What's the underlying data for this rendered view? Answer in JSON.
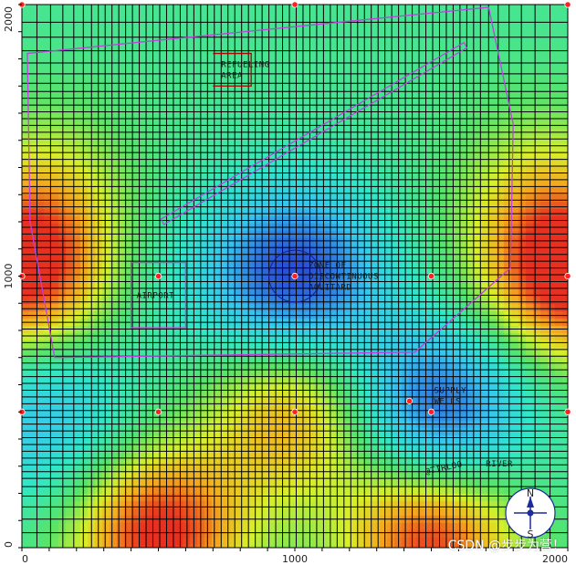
{
  "chart_data": {
    "type": "heatmap",
    "title": "",
    "xlabel": "",
    "ylabel": "",
    "xlim": [
      0,
      2000
    ],
    "ylim": [
      0,
      2000
    ],
    "x_ticks": [
      0,
      1000,
      2000
    ],
    "y_ticks": [
      0,
      1000,
      2000
    ],
    "colormap": [
      "#2a4fd8",
      "#36c6f0",
      "#30e8c8",
      "#58e46a",
      "#d8f02a",
      "#f5a81e",
      "#e83020"
    ],
    "field_features": [
      {
        "x": 1000,
        "y": 1000,
        "level": -1.0
      },
      {
        "x": 1520,
        "y": 500,
        "level": -0.95
      },
      {
        "x": 80,
        "y": 500,
        "level": -0.55
      },
      {
        "x": 0,
        "y": 1000,
        "level": 1.05
      },
      {
        "x": 2000,
        "y": 1000,
        "level": 1.05
      },
      {
        "x": 500,
        "y": 50,
        "level": 1.0
      },
      {
        "x": 1500,
        "y": 50,
        "level": 1.0
      },
      {
        "x": 1000,
        "y": 500,
        "level": 0.7
      },
      {
        "x": 100,
        "y": 1330,
        "level": 0.35
      },
      {
        "x": 1900,
        "y": 1330,
        "level": 0.35
      },
      {
        "x": 500,
        "y": 1000,
        "level": -0.1
      }
    ],
    "grid": {
      "x_lines": [
        0,
        55,
        105,
        150,
        190,
        225,
        255,
        280,
        305,
        330,
        355,
        380,
        405,
        430,
        455,
        480,
        505,
        530,
        555,
        580,
        605,
        630,
        655,
        680,
        705,
        730,
        755,
        780,
        805,
        830,
        855,
        880,
        905,
        930,
        955,
        980,
        1005,
        1030,
        1055,
        1080,
        1105,
        1130,
        1155,
        1180,
        1205,
        1230,
        1255,
        1280,
        1305,
        1330,
        1355,
        1380,
        1405,
        1430,
        1455,
        1480,
        1505,
        1530,
        1555,
        1580,
        1605,
        1630,
        1655,
        1680,
        1710,
        1745,
        1785,
        1830,
        1880,
        1935,
        2000
      ],
      "y_lines": [
        0,
        55,
        105,
        150,
        190,
        225,
        255,
        280,
        305,
        330,
        355,
        380,
        405,
        430,
        455,
        480,
        505,
        530,
        555,
        580,
        605,
        630,
        655,
        680,
        705,
        730,
        755,
        780,
        805,
        830,
        855,
        880,
        905,
        930,
        955,
        980,
        1005,
        1030,
        1055,
        1080,
        1105,
        1130,
        1155,
        1180,
        1205,
        1230,
        1255,
        1280,
        1305,
        1330,
        1355,
        1380,
        1405,
        1430,
        1455,
        1480,
        1505,
        1530,
        1555,
        1580,
        1605,
        1630,
        1655,
        1680,
        1710,
        1745,
        1785,
        1830,
        1880,
        1935,
        2000
      ]
    },
    "wells": [
      {
        "x": 500,
        "y": 1000
      },
      {
        "x": 1000,
        "y": 1000
      },
      {
        "x": 1500,
        "y": 1000
      },
      {
        "x": 500,
        "y": 500
      },
      {
        "x": 1000,
        "y": 500
      },
      {
        "x": 1500,
        "y": 500
      },
      {
        "x": 1420,
        "y": 540
      },
      {
        "x": 0,
        "y": 500
      },
      {
        "x": 2000,
        "y": 500
      },
      {
        "x": 0,
        "y": 1000
      },
      {
        "x": 2000,
        "y": 1000
      },
      {
        "x": 0,
        "y": 2000
      },
      {
        "x": 1000,
        "y": 2000
      },
      {
        "x": 2000,
        "y": 2000
      }
    ],
    "boundary_polygon": [
      [
        20,
        1820
      ],
      [
        1710,
        1990
      ],
      [
        1800,
        1560
      ],
      [
        1790,
        1030
      ],
      [
        1440,
        720
      ],
      [
        120,
        700
      ],
      [
        30,
        1200
      ]
    ],
    "refueling_area": [
      [
        700,
        1820
      ],
      [
        840,
        1820
      ],
      [
        840,
        1700
      ],
      [
        700,
        1700
      ]
    ],
    "airport_area": [
      [
        400,
        1050
      ],
      [
        600,
        1050
      ],
      [
        600,
        810
      ],
      [
        400,
        810
      ]
    ],
    "runway": [
      [
        510,
        1210
      ],
      [
        1620,
        1860
      ],
      [
        1630,
        1840
      ],
      [
        520,
        1190
      ]
    ],
    "discontinuous_zone": {
      "cx": 1000,
      "cy": 1000,
      "r": 95
    },
    "labels": [
      {
        "text": "REFUELING",
        "x": 730,
        "y": 1770
      },
      {
        "text": "AREA",
        "x": 730,
        "y": 1730
      },
      {
        "text": "AIRPORT",
        "x": 420,
        "y": 920
      },
      {
        "text": "ZONE OF",
        "x": 1050,
        "y": 1030
      },
      {
        "text": "DISCONTINUOUS",
        "x": 1050,
        "y": 990
      },
      {
        "text": "AQUITARD",
        "x": 1050,
        "y": 950
      },
      {
        "text": "SUPPLY",
        "x": 1510,
        "y": 570
      },
      {
        "text": "WELLS",
        "x": 1510,
        "y": 530
      },
      {
        "text": "@TIRLOO",
        "x": 1480,
        "y": 270
      },
      {
        "text": "RIVER",
        "x": 1700,
        "y": 300
      }
    ],
    "compass": {
      "n": "N",
      "s": "S"
    }
  },
  "watermark": "CSDN @步步为营！"
}
